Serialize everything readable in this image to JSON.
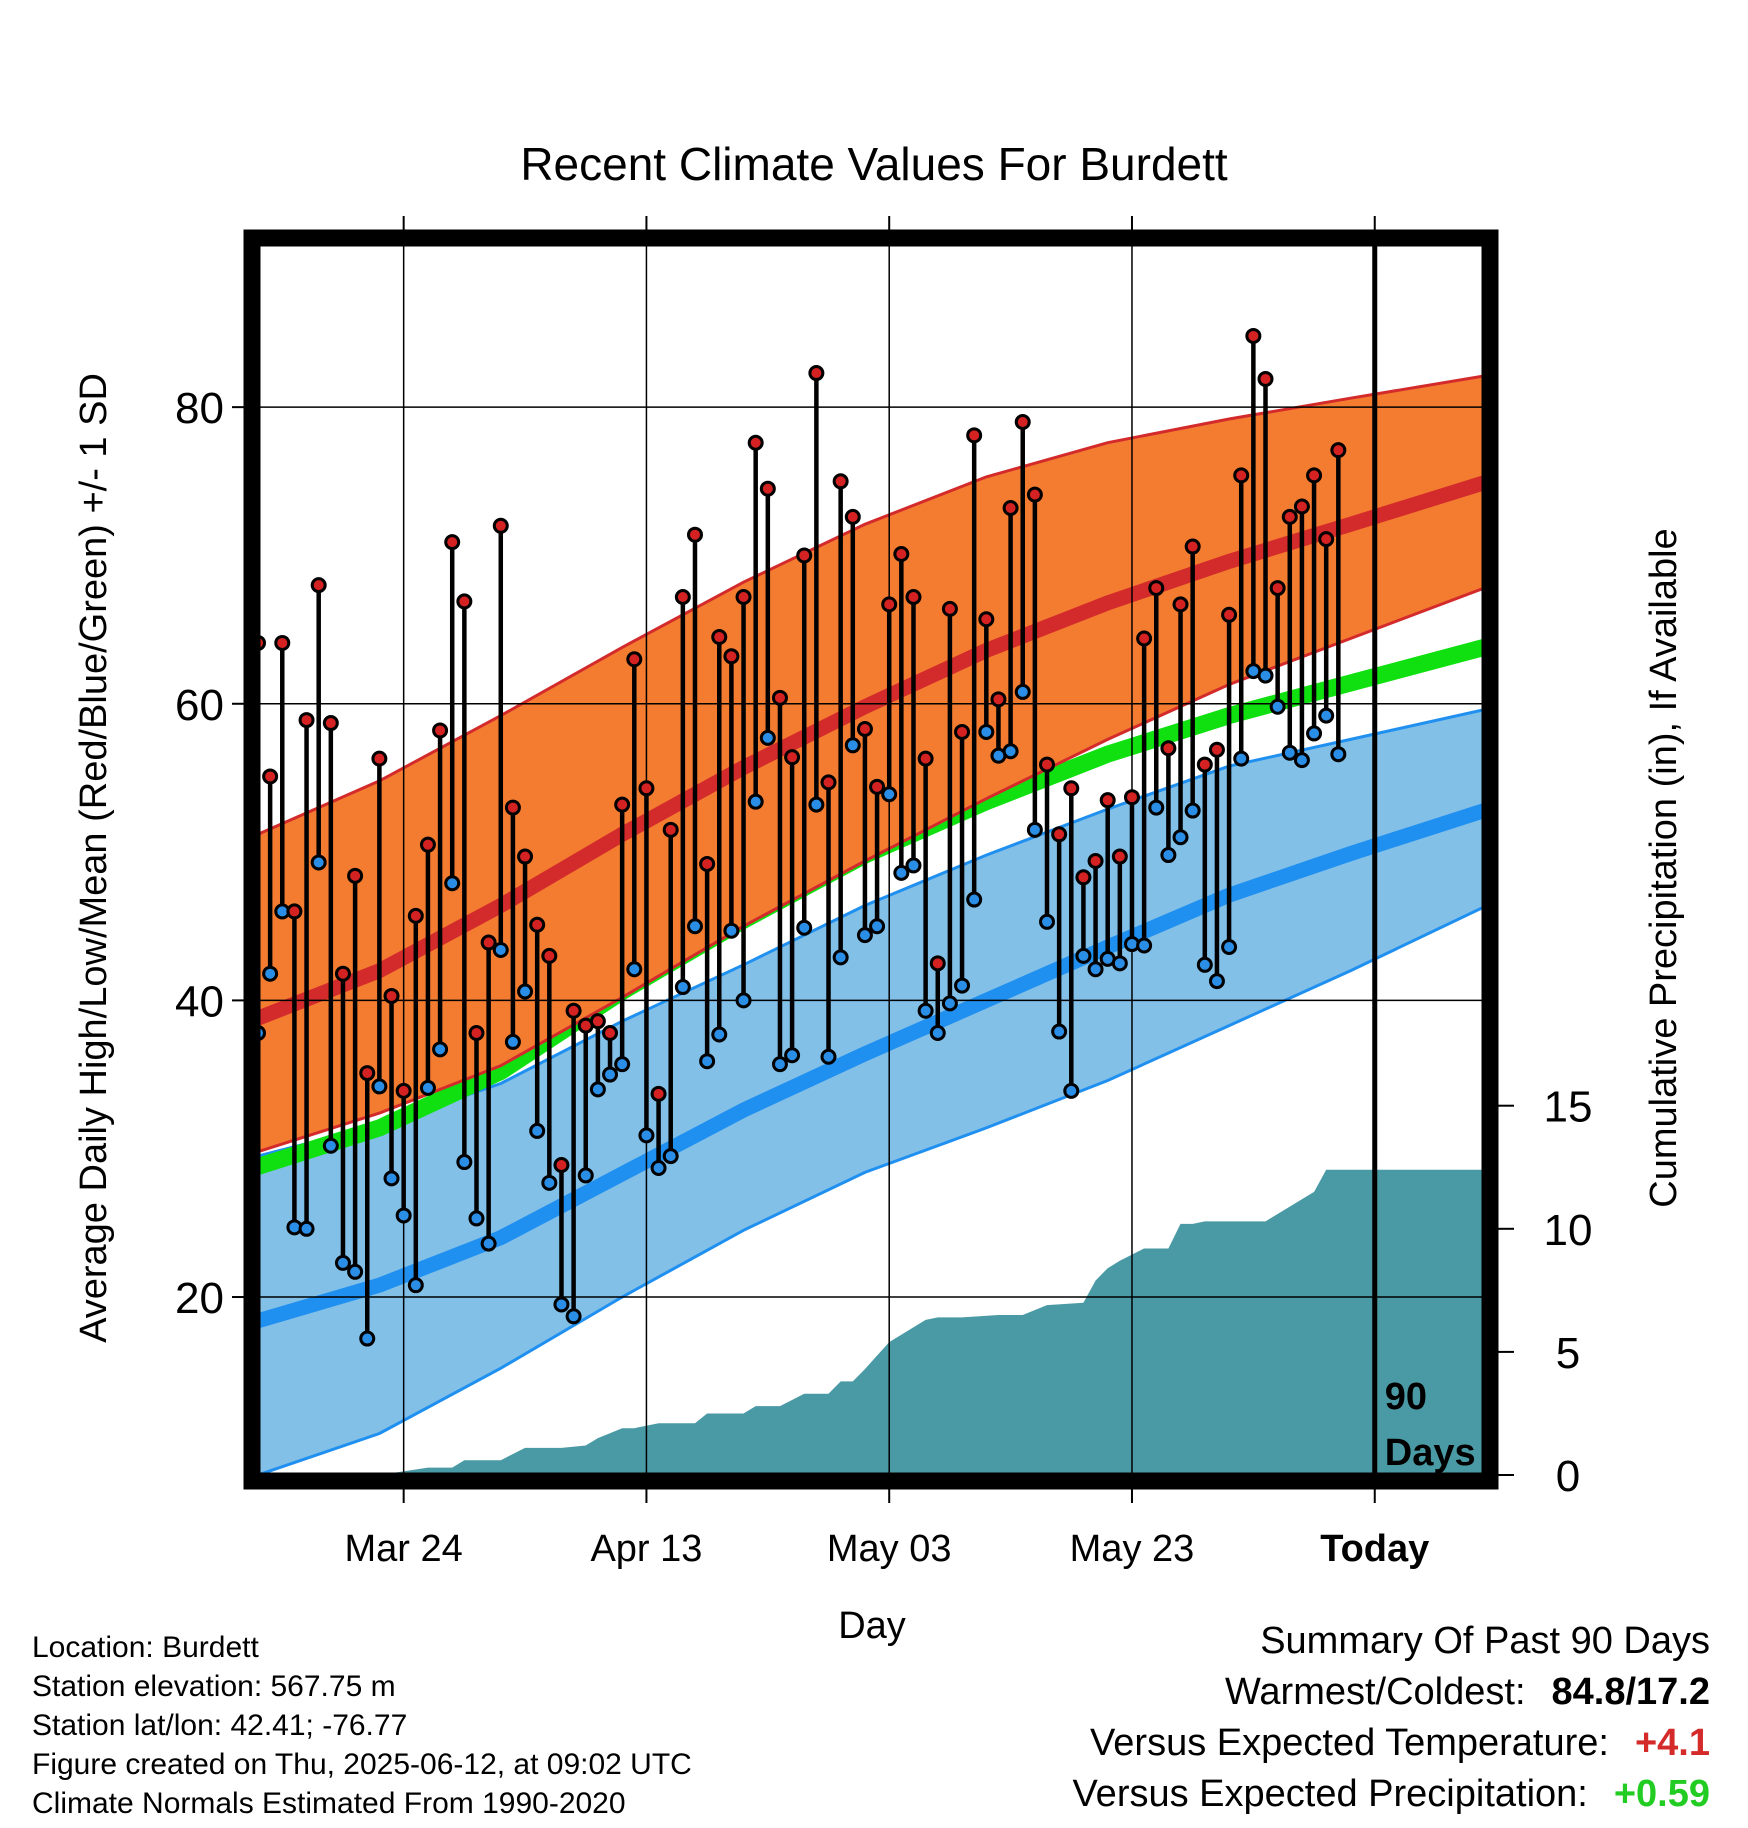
{
  "chart_data": {
    "type": "line",
    "title": "Recent Climate Values For Burdett",
    "xlabel": "Day",
    "ylabel": "Average Daily High/Low/Mean (Red/Blue/Green) +/- 1 SD",
    "y2label": "Cumulative Precipitation (in), If Available",
    "x_tick_labels": [
      "Mar 24",
      "Apr 13",
      "May 03",
      "May 23",
      "Today"
    ],
    "x_tick_days": [
      12,
      32,
      52,
      72,
      92
    ],
    "xlim": [
      0,
      101
    ],
    "ylim": [
      8,
      91
    ],
    "y_ticks": [
      20,
      40,
      60,
      80
    ],
    "y2lim": [
      0,
      50
    ],
    "y2_ticks": [
      0,
      5,
      10,
      15
    ],
    "today_marker_day": 92,
    "today_marker_label": [
      "90",
      "Days"
    ],
    "grid": true,
    "colors": {
      "high_band": "#f47c30",
      "high_line": "#d32b2b",
      "mean_line": "#10e010",
      "low_band": "#82c0e8",
      "low_line": "#2090f0",
      "precip": "#4a9aa5",
      "high_dot": "#d42222",
      "low_dot": "#2a8ee6"
    },
    "normals": {
      "day": [
        0,
        10,
        20,
        30,
        40,
        50,
        60,
        70,
        80,
        90,
        101
      ],
      "high_mean": [
        38.8,
        42.0,
        46.4,
        51.2,
        55.7,
        59.8,
        63.6,
        66.8,
        69.6,
        72.1,
        74.9
      ],
      "high_upper": [
        51.2,
        54.8,
        59.2,
        63.8,
        68.2,
        72.1,
        75.3,
        77.6,
        79.2,
        80.6,
        82.1
      ],
      "high_lower": [
        29.8,
        32.4,
        35.6,
        40.2,
        45.0,
        49.4,
        53.6,
        57.6,
        61.3,
        64.4,
        67.8
      ],
      "mean": [
        28.8,
        31.4,
        35.2,
        40.6,
        45.4,
        49.8,
        53.4,
        56.6,
        59.2,
        61.4,
        63.8
      ],
      "low_mean": [
        18.4,
        20.8,
        24.0,
        28.3,
        32.6,
        36.4,
        40.0,
        43.6,
        47.1,
        49.9,
        52.8
      ],
      "low_upper": [
        29.5,
        31.6,
        34.4,
        38.6,
        42.4,
        46.4,
        49.8,
        52.9,
        55.8,
        57.6,
        59.6
      ],
      "low_lower": [
        8.0,
        10.8,
        15.2,
        20.0,
        24.5,
        28.4,
        31.4,
        34.6,
        38.3,
        42.0,
        46.3
      ]
    },
    "precip_day": [
      0,
      10,
      14,
      16,
      17,
      20,
      22,
      25,
      27,
      28,
      30,
      31,
      33,
      36,
      37,
      40,
      41,
      43,
      45,
      47,
      48,
      49,
      50,
      52,
      53,
      55,
      56,
      58,
      61,
      63,
      65,
      68,
      69,
      70,
      71,
      73,
      75,
      76,
      77,
      78,
      80,
      82,
      83,
      86,
      87,
      88,
      89,
      91,
      101
    ],
    "precip_cum": [
      0,
      0,
      0.3,
      0.3,
      0.6,
      0.6,
      1.1,
      1.1,
      1.2,
      1.5,
      1.9,
      1.9,
      2.1,
      2.1,
      2.5,
      2.5,
      2.8,
      2.8,
      3.3,
      3.3,
      3.8,
      3.8,
      4.3,
      5.4,
      5.7,
      6.3,
      6.4,
      6.4,
      6.5,
      6.5,
      6.9,
      7.0,
      7.9,
      8.4,
      8.7,
      9.2,
      9.2,
      10.2,
      10.2,
      10.3,
      10.3,
      10.3,
      10.3,
      11.2,
      11.5,
      12.4,
      12.4,
      12.4,
      12.4
    ],
    "observed": {
      "day": [
        0,
        1,
        2,
        3,
        4,
        5,
        6,
        7,
        8,
        9,
        10,
        11,
        12,
        13,
        14,
        15,
        16,
        17,
        18,
        19,
        20,
        21,
        22,
        23,
        24,
        25,
        26,
        27,
        28,
        29,
        30,
        31,
        32,
        33,
        34,
        35,
        36,
        37,
        38,
        39,
        40,
        41,
        42,
        43,
        44,
        45,
        46,
        47,
        48,
        49,
        50,
        51,
        52,
        53,
        54,
        55,
        56,
        57,
        58,
        59,
        60,
        61,
        62,
        63,
        64,
        65,
        66,
        67,
        68,
        69,
        70,
        71,
        72,
        73,
        74,
        75,
        76,
        77,
        78,
        79,
        80,
        81,
        82,
        83,
        84,
        85,
        86,
        87,
        88,
        89,
        90,
        91
      ],
      "high": [
        64.1,
        55.1,
        64.1,
        46.0,
        58.9,
        68.0,
        58.7,
        41.8,
        48.4,
        35.1,
        56.3,
        40.3,
        33.9,
        45.7,
        50.5,
        58.2,
        70.9,
        66.9,
        37.8,
        43.9,
        72.0,
        53.0,
        49.7,
        45.1,
        43.0,
        28.9,
        39.3,
        38.3,
        38.6,
        37.8,
        53.2,
        63.0,
        54.3,
        33.7,
        51.5,
        67.2,
        71.4,
        49.2,
        64.5,
        63.2,
        67.2,
        77.6,
        74.5,
        60.4,
        56.4,
        70.0,
        82.3,
        54.7,
        75.0,
        72.6,
        58.3,
        54.4,
        66.7,
        70.1,
        67.2,
        56.3,
        42.5,
        66.4,
        58.1,
        78.1,
        65.7,
        60.3,
        73.2,
        79.0,
        74.1,
        55.9,
        51.2,
        54.3,
        48.3,
        49.4,
        53.5,
        49.7,
        53.7,
        64.4,
        67.8,
        57.0,
        66.7,
        70.6,
        55.9,
        56.9,
        66.0,
        75.4,
        84.8,
        81.9,
        67.8,
        72.6,
        73.3,
        75.4,
        71.1,
        77.1
      ],
      "low": [
        37.8,
        41.8,
        46.0,
        24.7,
        24.6,
        49.3,
        30.2,
        22.3,
        21.7,
        17.2,
        34.2,
        28.0,
        25.5,
        20.8,
        34.1,
        36.7,
        47.9,
        29.1,
        25.3,
        23.6,
        43.4,
        37.2,
        40.6,
        31.2,
        27.7,
        19.5,
        18.7,
        28.2,
        34.0,
        35.0,
        35.7,
        42.1,
        30.9,
        28.7,
        29.5,
        40.9,
        45.0,
        35.9,
        37.7,
        44.7,
        40.0,
        53.4,
        57.7,
        35.7,
        36.3,
        44.9,
        53.2,
        36.2,
        42.9,
        57.2,
        44.4,
        45.0,
        53.9,
        48.6,
        49.1,
        39.3,
        37.8,
        39.8,
        41.0,
        46.8,
        58.1,
        56.5,
        56.8,
        60.8,
        51.5,
        45.3,
        37.9,
        33.9,
        43.0,
        42.1,
        42.8,
        42.5,
        43.8,
        43.7,
        53.0,
        49.8,
        51.0,
        52.8,
        42.4,
        41.3,
        43.6,
        56.3,
        62.2,
        61.9,
        59.8,
        56.7,
        56.2,
        58.0,
        59.2,
        56.6
      ]
    }
  },
  "info": {
    "location": "Location: Burdett",
    "elevation": "Station elevation: 567.75 m",
    "latlon": "Station lat/lon: 42.41; -76.77",
    "created": "Figure created on Thu, 2025-06-12, at 09:02 UTC",
    "normals": "Climate Normals Estimated From 1990-2020"
  },
  "summary": {
    "heading": "Summary Of Past 90 Days",
    "warm_cold_label": "Warmest/Coldest:",
    "warm_cold_value": "84.8/17.2",
    "temp_label": "Versus Expected Temperature:",
    "temp_value": "+4.1",
    "temp_color": "#d42a2a",
    "precip_label": "Versus Expected Precipitation:",
    "precip_value": "+0.59",
    "precip_color": "#22cc22"
  }
}
